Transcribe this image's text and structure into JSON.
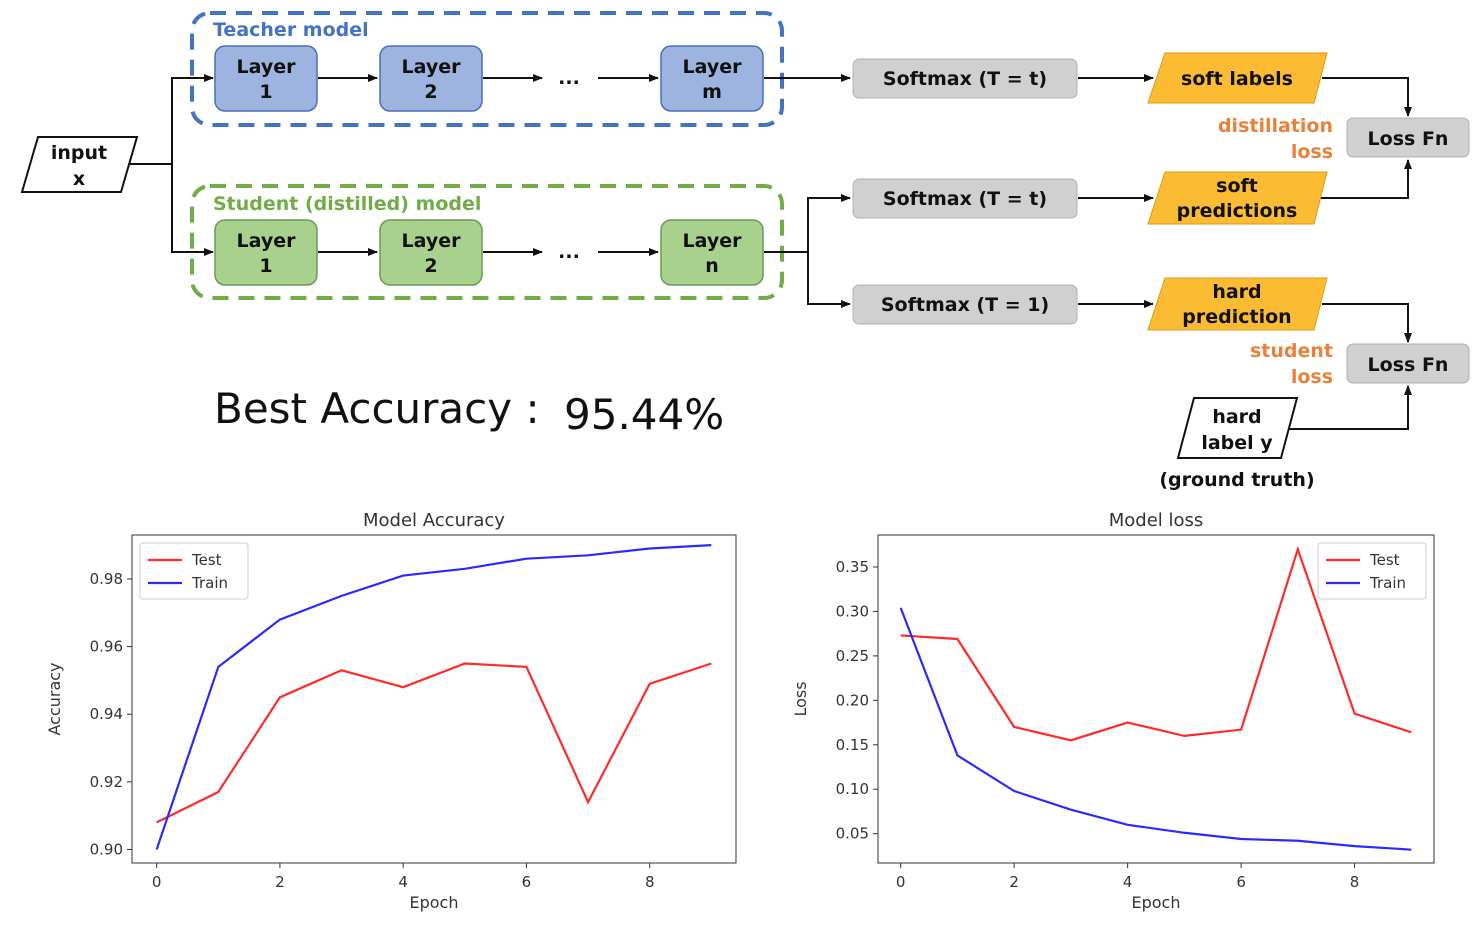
{
  "diagram": {
    "teacher_title": "Teacher model",
    "student_title": "Student (distilled) model",
    "input": [
      "input",
      "x"
    ],
    "teacher_layers": [
      [
        "Layer",
        "1"
      ],
      [
        "Layer",
        "2"
      ],
      [
        "Layer",
        "m"
      ]
    ],
    "student_layers": [
      [
        "Layer",
        "1"
      ],
      [
        "Layer",
        "2"
      ],
      [
        "Layer",
        "n"
      ]
    ],
    "ellipsis": "...",
    "softmax_teacher": "Softmax (T = t)",
    "softmax_student_soft": "Softmax (T = t)",
    "softmax_student_hard": "Softmax (T = 1)",
    "soft_labels": [
      "soft labels"
    ],
    "soft_predictions": [
      "soft",
      "predictions"
    ],
    "hard_prediction": [
      "hard",
      "prediction"
    ],
    "distillation_loss": [
      "distillation",
      "loss"
    ],
    "student_loss": [
      "student",
      "loss"
    ],
    "loss_fn_top": "Loss Fn",
    "loss_fn_bottom": "Loss Fn",
    "hard_label": [
      "hard",
      "label y"
    ],
    "ground_truth": "(ground truth)",
    "colors": {
      "teacher": "#4472c4",
      "teacher_fill": "#9db3e0",
      "student": "#70ad47",
      "student_fill": "#a9d18e",
      "orange_box": "#fbbc34",
      "orange_text": "#e8823a",
      "gray_box": "#d0d0d0"
    }
  },
  "summary": {
    "label": "Best Accuracy :",
    "value": "95.44%"
  },
  "chart_data": [
    {
      "type": "line",
      "title": "Model Accuracy",
      "xlabel": "Epoch",
      "ylabel": "Accuracy",
      "x": [
        0,
        1,
        2,
        3,
        4,
        5,
        6,
        7,
        8,
        9
      ],
      "series": [
        {
          "name": "Test",
          "color": "#ff2a2a",
          "values": [
            0.908,
            0.917,
            0.945,
            0.953,
            0.948,
            0.955,
            0.954,
            0.914,
            0.949,
            0.955
          ]
        },
        {
          "name": "Train",
          "color": "#2a2aff",
          "values": [
            0.9,
            0.954,
            0.968,
            0.975,
            0.981,
            0.983,
            0.986,
            0.987,
            0.989,
            0.99
          ]
        }
      ],
      "xlim": [
        -0.4,
        9.4
      ],
      "ylim": [
        0.896,
        0.993
      ],
      "xticks": [
        "0",
        "2",
        "4",
        "6",
        "8"
      ],
      "yticks": [
        "0.90",
        "0.92",
        "0.94",
        "0.96",
        "0.98"
      ],
      "legend": "top-left"
    },
    {
      "type": "line",
      "title": "Model loss",
      "xlabel": "Epoch",
      "ylabel": "Loss",
      "x": [
        0,
        1,
        2,
        3,
        4,
        5,
        6,
        7,
        8,
        9
      ],
      "series": [
        {
          "name": "Test",
          "color": "#ff2a2a",
          "values": [
            0.273,
            0.269,
            0.17,
            0.155,
            0.175,
            0.16,
            0.167,
            0.37,
            0.185,
            0.164
          ]
        },
        {
          "name": "Train",
          "color": "#2a2aff",
          "values": [
            0.304,
            0.138,
            0.098,
            0.077,
            0.06,
            0.051,
            0.044,
            0.042,
            0.036,
            0.032
          ]
        }
      ],
      "xlim": [
        -0.4,
        9.4
      ],
      "ylim": [
        0.017,
        0.386
      ],
      "xticks": [
        "0",
        "2",
        "4",
        "6",
        "8"
      ],
      "yticks": [
        "0.05",
        "0.10",
        "0.15",
        "0.20",
        "0.25",
        "0.30",
        "0.35"
      ],
      "legend": "top-right"
    }
  ]
}
